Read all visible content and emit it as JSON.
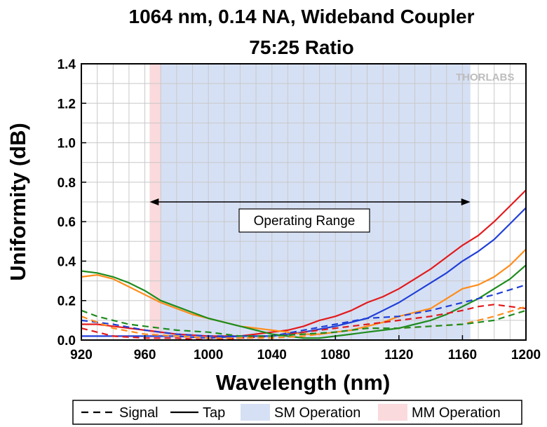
{
  "chart_data": {
    "type": "line",
    "title": [
      "1064 nm, 0.14 NA, Wideband Coupler",
      "75:25 Ratio"
    ],
    "xlabel": "Wavelength (nm)",
    "ylabel": "Uniformity (dB)",
    "xlim": [
      920,
      1200
    ],
    "ylim": [
      0,
      1.4
    ],
    "xticks": [
      920,
      960,
      1000,
      1040,
      1080,
      1120,
      1160,
      1200
    ],
    "yticks": [
      "0.0",
      "0.2",
      "0.4",
      "0.6",
      "0.8",
      "1.0",
      "1.2",
      "1.4"
    ],
    "grid": true,
    "watermark": "THORLABS",
    "bands": [
      {
        "name": "MM Operation",
        "range": [
          963,
          970
        ],
        "color": "#fadadd"
      },
      {
        "name": "SM Operation",
        "range": [
          970,
          1165
        ],
        "color": "#d6e0f4"
      }
    ],
    "annotation": {
      "text": "Operating Range",
      "from": 963,
      "to": 1165,
      "y": 0.7
    },
    "legend": {
      "position": "bottom",
      "items": [
        {
          "label": "Signal",
          "kind": "dashed"
        },
        {
          "label": "Tap",
          "kind": "solid"
        },
        {
          "label": "SM Operation",
          "kind": "band",
          "color": "#d6e0f4"
        },
        {
          "label": "MM Operation",
          "kind": "band",
          "color": "#fadadd"
        }
      ]
    },
    "series": [
      {
        "color": "#e31a1c",
        "style": "solid",
        "x": [
          920,
          930,
          940,
          960,
          980,
          1000,
          1020,
          1040,
          1050,
          1060,
          1070,
          1080,
          1090,
          1100,
          1110,
          1120,
          1130,
          1140,
          1150,
          1160,
          1170,
          1180,
          1190,
          1200
        ],
        "y": [
          0.08,
          0.08,
          0.07,
          0.05,
          0.03,
          0.02,
          0.02,
          0.04,
          0.05,
          0.07,
          0.1,
          0.12,
          0.15,
          0.19,
          0.22,
          0.26,
          0.31,
          0.36,
          0.42,
          0.48,
          0.53,
          0.6,
          0.68,
          0.76
        ]
      },
      {
        "color": "#1f3fd8",
        "style": "solid",
        "x": [
          920,
          940,
          960,
          980,
          1000,
          1020,
          1040,
          1060,
          1080,
          1090,
          1100,
          1110,
          1120,
          1130,
          1140,
          1150,
          1160,
          1170,
          1180,
          1190,
          1200
        ],
        "y": [
          0.02,
          0.02,
          0.02,
          0.02,
          0.01,
          0.02,
          0.02,
          0.04,
          0.07,
          0.09,
          0.11,
          0.15,
          0.19,
          0.24,
          0.29,
          0.34,
          0.4,
          0.45,
          0.51,
          0.59,
          0.67
        ]
      },
      {
        "color": "#ff8c1a",
        "style": "solid",
        "x": [
          920,
          930,
          940,
          950,
          960,
          970,
          980,
          990,
          1000,
          1010,
          1020,
          1030,
          1040,
          1050,
          1060,
          1070,
          1080,
          1090,
          1100,
          1110,
          1120,
          1130,
          1140,
          1150,
          1160,
          1170,
          1180,
          1190,
          1200
        ],
        "y": [
          0.32,
          0.33,
          0.31,
          0.27,
          0.23,
          0.19,
          0.16,
          0.13,
          0.11,
          0.09,
          0.07,
          0.06,
          0.05,
          0.04,
          0.03,
          0.03,
          0.04,
          0.05,
          0.07,
          0.09,
          0.12,
          0.14,
          0.16,
          0.21,
          0.26,
          0.28,
          0.32,
          0.38,
          0.46
        ]
      },
      {
        "color": "#1e8c1e",
        "style": "solid",
        "x": [
          920,
          930,
          940,
          950,
          960,
          970,
          980,
          990,
          1000,
          1010,
          1020,
          1030,
          1040,
          1050,
          1060,
          1070,
          1080,
          1090,
          1100,
          1110,
          1120,
          1130,
          1140,
          1150,
          1160,
          1170,
          1180,
          1190,
          1200
        ],
        "y": [
          0.35,
          0.34,
          0.32,
          0.29,
          0.25,
          0.2,
          0.17,
          0.14,
          0.11,
          0.09,
          0.07,
          0.05,
          0.03,
          0.02,
          0.01,
          0.01,
          0.02,
          0.03,
          0.04,
          0.05,
          0.06,
          0.08,
          0.1,
          0.13,
          0.17,
          0.21,
          0.26,
          0.31,
          0.38
        ]
      },
      {
        "color": "#e31a1c",
        "style": "dashed",
        "x": [
          920,
          940,
          960,
          980,
          1000,
          1020,
          1040,
          1060,
          1080,
          1100,
          1120,
          1140,
          1160,
          1170,
          1180,
          1190,
          1200
        ],
        "y": [
          0.06,
          0.02,
          0.01,
          0.01,
          0.0,
          0.01,
          0.02,
          0.04,
          0.06,
          0.08,
          0.1,
          0.12,
          0.15,
          0.17,
          0.18,
          0.17,
          0.16
        ]
      },
      {
        "color": "#1f3fd8",
        "style": "dashed",
        "x": [
          920,
          940,
          960,
          980,
          1000,
          1020,
          1040,
          1060,
          1080,
          1100,
          1120,
          1140,
          1160,
          1180,
          1200
        ],
        "y": [
          0.1,
          0.08,
          0.05,
          0.03,
          0.02,
          0.02,
          0.02,
          0.05,
          0.08,
          0.11,
          0.12,
          0.15,
          0.19,
          0.23,
          0.28
        ]
      },
      {
        "color": "#ff8c1a",
        "style": "dashed",
        "x": [
          920,
          940,
          960,
          980,
          1000,
          1020,
          1040,
          1060,
          1080,
          1100,
          1120,
          1140,
          1160,
          1180,
          1200
        ],
        "y": [
          0.12,
          0.06,
          0.03,
          0.02,
          0.01,
          0.01,
          0.01,
          0.02,
          0.04,
          0.06,
          0.06,
          0.07,
          0.08,
          0.12,
          0.17
        ]
      },
      {
        "color": "#1e8c1e",
        "style": "dashed",
        "x": [
          920,
          930,
          940,
          950,
          960,
          970,
          980,
          1000,
          1020,
          1040,
          1060,
          1080,
          1100,
          1120,
          1140,
          1160,
          1180,
          1200
        ],
        "y": [
          0.15,
          0.12,
          0.1,
          0.08,
          0.07,
          0.06,
          0.05,
          0.04,
          0.02,
          0.02,
          0.03,
          0.04,
          0.06,
          0.06,
          0.07,
          0.08,
          0.1,
          0.15
        ]
      }
    ]
  }
}
